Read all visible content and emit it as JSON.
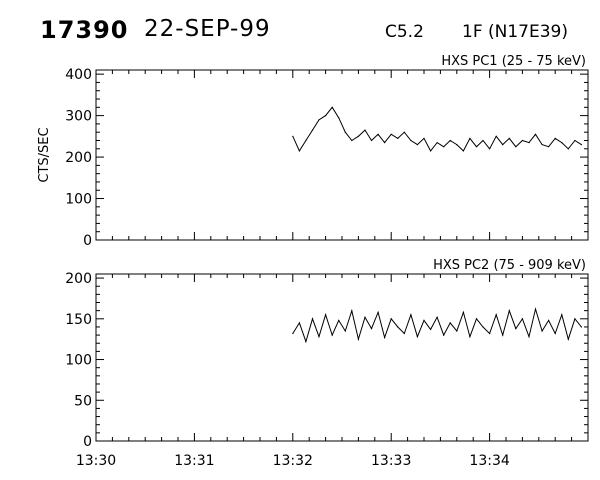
{
  "header": {
    "event_id": "17390",
    "date": "22-SEP-99",
    "goes_class": "C5.2",
    "flare_info": "1F (N17E39)"
  },
  "chart_data": [
    {
      "type": "line",
      "title": "HXS PC1 (25 - 75 keV)",
      "ylabel": "CTS/SEC",
      "xlabel": "",
      "x_ticks": [
        "13:30",
        "13:31",
        "13:32",
        "13:33",
        "13:34"
      ],
      "xlim": [
        "13:30:00",
        "13:35:00"
      ],
      "ylim": [
        0,
        410
      ],
      "y_ticks": [
        0,
        100,
        200,
        300,
        400
      ],
      "series": [
        {
          "x": [
            "13:32:00",
            "13:32:04",
            "13:32:08",
            "13:32:12",
            "13:32:16",
            "13:32:20",
            "13:32:24",
            "13:32:28",
            "13:32:32",
            "13:32:36",
            "13:32:40",
            "13:32:44",
            "13:32:48",
            "13:32:52",
            "13:32:56",
            "13:33:00",
            "13:33:04",
            "13:33:08",
            "13:33:12",
            "13:33:16",
            "13:33:20",
            "13:33:24",
            "13:33:28",
            "13:33:32",
            "13:33:36",
            "13:33:40",
            "13:33:44",
            "13:33:48",
            "13:33:52",
            "13:33:56",
            "13:34:00",
            "13:34:04",
            "13:34:08",
            "13:34:12",
            "13:34:16",
            "13:34:20",
            "13:34:24",
            "13:34:28",
            "13:34:32",
            "13:34:36",
            "13:34:40",
            "13:34:44",
            "13:34:48",
            "13:34:52",
            "13:34:56"
          ],
          "values": [
            250,
            215,
            240,
            265,
            290,
            300,
            320,
            295,
            260,
            240,
            250,
            265,
            240,
            255,
            235,
            255,
            245,
            260,
            240,
            230,
            245,
            215,
            235,
            225,
            240,
            230,
            215,
            245,
            225,
            240,
            220,
            250,
            230,
            245,
            225,
            240,
            235,
            255,
            230,
            225,
            245,
            235,
            220,
            240,
            230
          ]
        }
      ]
    },
    {
      "type": "line",
      "title": "HXS PC2 (75 - 909 keV)",
      "ylabel": "",
      "xlabel": "",
      "x_ticks": [
        "13:30",
        "13:31",
        "13:32",
        "13:33",
        "13:34"
      ],
      "xlim": [
        "13:30:00",
        "13:35:00"
      ],
      "ylim": [
        0,
        205
      ],
      "y_ticks": [
        0,
        50,
        100,
        150,
        200
      ],
      "series": [
        {
          "x": [
            "13:32:00",
            "13:32:04",
            "13:32:08",
            "13:32:12",
            "13:32:16",
            "13:32:20",
            "13:32:24",
            "13:32:28",
            "13:32:32",
            "13:32:36",
            "13:32:40",
            "13:32:44",
            "13:32:48",
            "13:32:52",
            "13:32:56",
            "13:33:00",
            "13:33:04",
            "13:33:08",
            "13:33:12",
            "13:33:16",
            "13:33:20",
            "13:33:24",
            "13:33:28",
            "13:33:32",
            "13:33:36",
            "13:33:40",
            "13:33:44",
            "13:33:48",
            "13:33:52",
            "13:33:56",
            "13:34:00",
            "13:34:04",
            "13:34:08",
            "13:34:12",
            "13:34:16",
            "13:34:20",
            "13:34:24",
            "13:34:28",
            "13:34:32",
            "13:34:36",
            "13:34:40",
            "13:34:44",
            "13:34:48",
            "13:34:52",
            "13:34:56"
          ],
          "values": [
            132,
            145,
            122,
            150,
            128,
            155,
            130,
            148,
            135,
            160,
            125,
            152,
            138,
            158,
            127,
            150,
            140,
            132,
            155,
            128,
            148,
            137,
            152,
            130,
            145,
            135,
            158,
            128,
            150,
            140,
            132,
            155,
            130,
            160,
            138,
            150,
            128,
            162,
            135,
            148,
            132,
            155,
            125,
            150,
            140
          ]
        }
      ]
    }
  ]
}
